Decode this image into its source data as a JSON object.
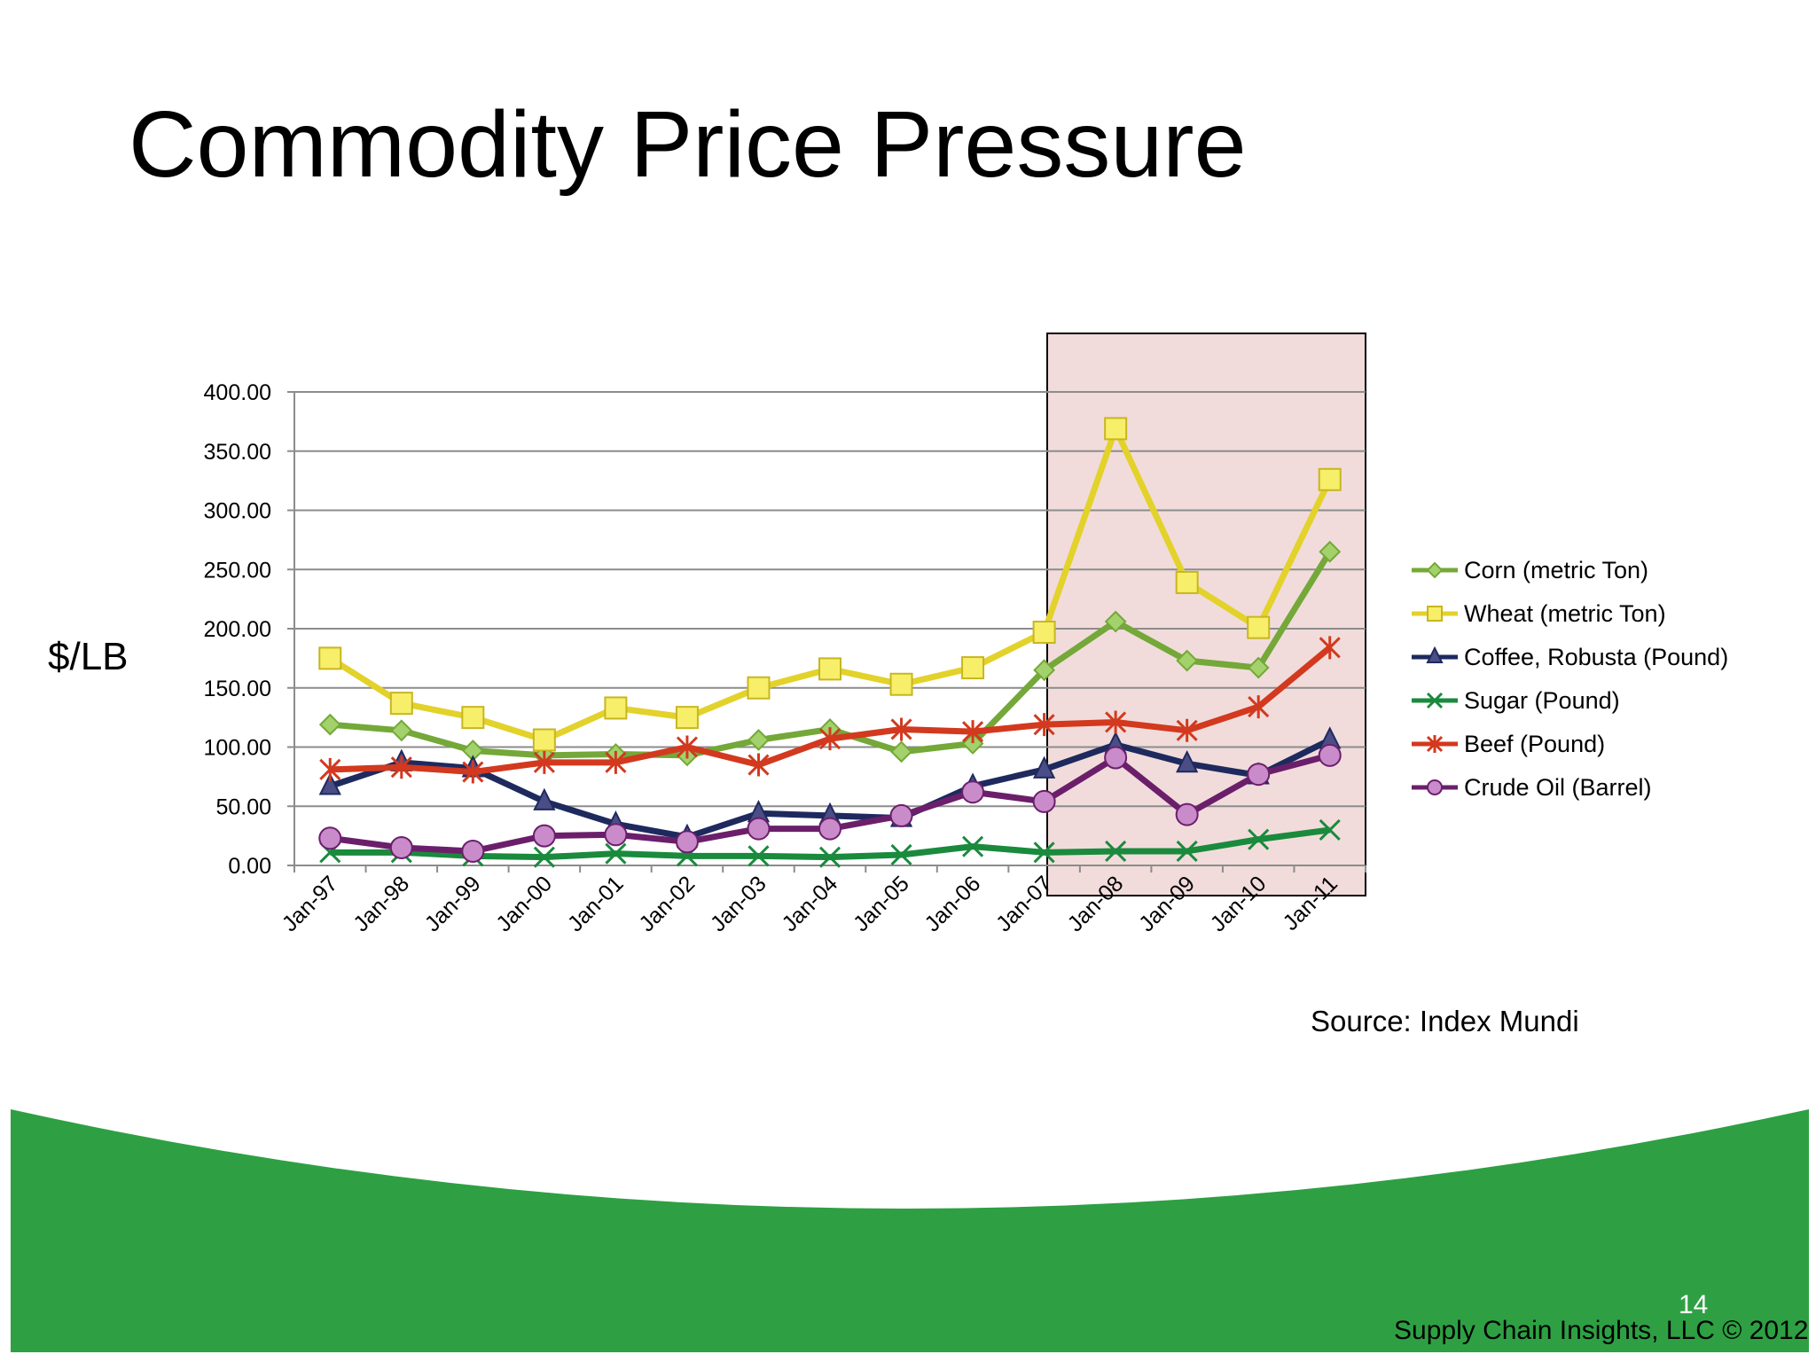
{
  "title": "Commodity Price Pressure",
  "y_unit_label": "$/LB",
  "source": "Source: Index Mundi",
  "page_number": "14",
  "footer": "Supply Chain Insights, LLC © 2012",
  "colors": {
    "banner_green": "#2ea043",
    "highlight_fill": "#f1dcdb",
    "highlight_border": "#000000"
  },
  "chart_data": {
    "type": "line",
    "categories": [
      "Jan-97",
      "Jan-98",
      "Jan-99",
      "Jan-00",
      "Jan-01",
      "Jan-02",
      "Jan-03",
      "Jan-04",
      "Jan-05",
      "Jan-06",
      "Jan-07",
      "Jan-08",
      "Jan-09",
      "Jan-10",
      "Jan-11"
    ],
    "ylim": [
      0,
      400
    ],
    "yticks": [
      "0.00",
      "50.00",
      "100.00",
      "150.00",
      "200.00",
      "250.00",
      "300.00",
      "350.00",
      "400.00"
    ],
    "grid": true,
    "legend_position": "right",
    "highlight_range": [
      "Jan-07",
      "Jan-11"
    ],
    "series": [
      {
        "name": "Corn (metric Ton)",
        "color": "#74a838",
        "marker": "diamond",
        "values": [
          119,
          114,
          97,
          93,
          94,
          93,
          106,
          115,
          96,
          103,
          165,
          206,
          173,
          167,
          265
        ]
      },
      {
        "name": "Wheat (metric Ton)",
        "color": "#e2d22a",
        "marker": "square",
        "values": [
          175,
          137,
          125,
          106,
          133,
          125,
          150,
          166,
          153,
          167,
          197,
          369,
          239,
          201,
          326
        ]
      },
      {
        "name": "Coffee, Robusta  (Pound)",
        "color": "#1e2a5e",
        "marker": "triangle",
        "values": [
          67,
          87,
          82,
          54,
          35,
          24,
          44,
          42,
          40,
          67,
          81,
          102,
          86,
          76,
          106
        ]
      },
      {
        "name": "Sugar (Pound)",
        "color": "#1a8a3d",
        "marker": "x",
        "values": [
          11,
          11,
          8,
          7,
          10,
          8,
          8,
          7,
          9,
          16,
          11,
          12,
          12,
          22,
          30
        ]
      },
      {
        "name": "Beef (Pound)",
        "color": "#d2391e",
        "marker": "star",
        "values": [
          81,
          83,
          79,
          87,
          87,
          100,
          85,
          107,
          115,
          113,
          119,
          121,
          114,
          134,
          184
        ]
      },
      {
        "name": "Crude Oil (Barrel)",
        "color": "#6b1f6b",
        "marker": "circle",
        "values": [
          23,
          15,
          12,
          25,
          26,
          20,
          31,
          31,
          42,
          62,
          54,
          91,
          43,
          77,
          93
        ]
      }
    ]
  }
}
